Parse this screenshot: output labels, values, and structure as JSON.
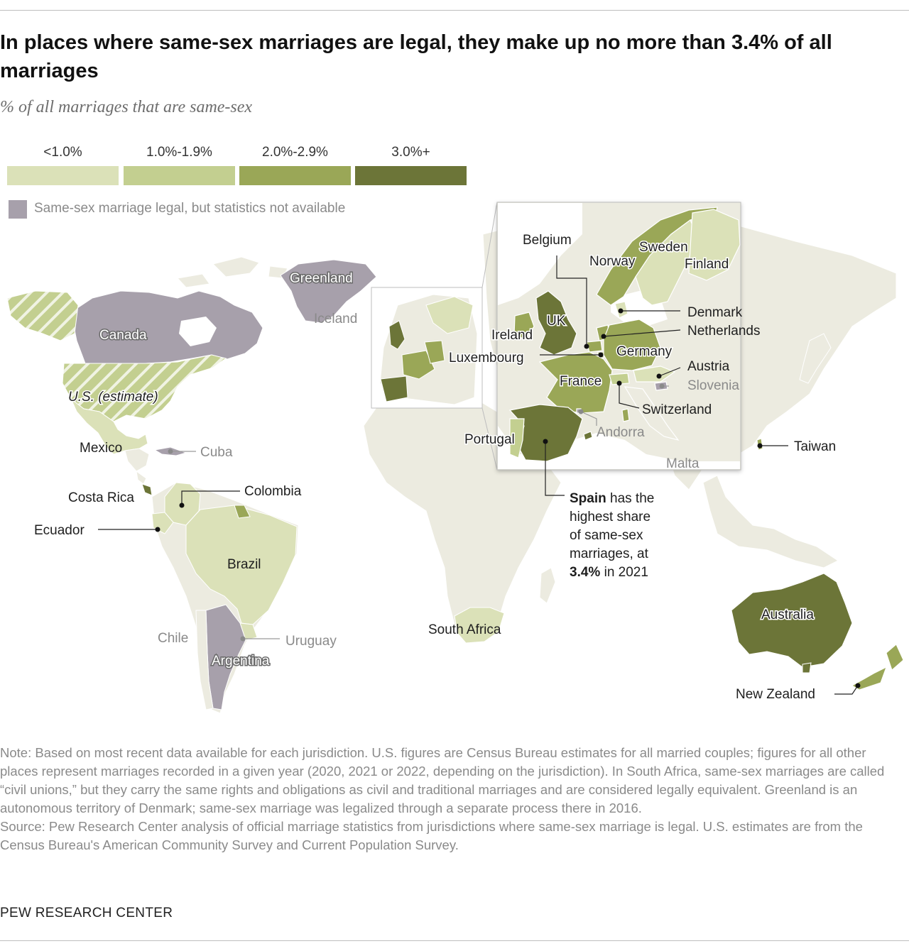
{
  "title": "In places where same-sex marriages are legal, they make up no more than 3.4% of all marriages",
  "subtitle": "% of all marriages that are same-sex",
  "colors": {
    "lt1": "#dbe1b8",
    "c1_19": "#c3cf90",
    "c2_29": "#9aa757",
    "c3plus": "#6c7538",
    "na": "#a7a0ab",
    "land": "#ecebe0",
    "border": "#ffffff"
  },
  "legend": {
    "bins": [
      {
        "label": "<1.0%",
        "color": "#dbe1b8"
      },
      {
        "label": "1.0%-1.9%",
        "color": "#c3cf90"
      },
      {
        "label": "2.0%-2.9%",
        "color": "#9aa757"
      },
      {
        "label": "3.0%+",
        "color": "#6c7538"
      }
    ],
    "na_label": "Same-sex marriage legal, but statistics not available"
  },
  "labels": {
    "greenland": "Greenland",
    "canada": "Canada",
    "iceland": "Iceland",
    "us": "U.S. (estimate)",
    "mexico": "Mexico",
    "cuba": "Cuba",
    "costa_rica": "Costa Rica",
    "colombia": "Colombia",
    "ecuador": "Ecuador",
    "brazil": "Brazil",
    "chile": "Chile",
    "argentina": "Argentina",
    "uruguay": "Uruguay",
    "south_africa": "South Africa",
    "taiwan": "Taiwan",
    "australia": "Australia",
    "new_zealand": "New Zealand",
    "belgium": "Belgium",
    "norway": "Norway",
    "sweden": "Sweden",
    "finland": "Finland",
    "denmark": "Denmark",
    "netherlands": "Netherlands",
    "uk": "UK",
    "ireland": "Ireland",
    "germany": "Germany",
    "luxembourg": "Luxembourg",
    "austria": "Austria",
    "france": "France",
    "slovenia": "Slovenia",
    "switzerland": "Switzerland",
    "andorra": "Andorra",
    "portugal": "Portugal",
    "malta": "Malta"
  },
  "callout": {
    "country": "Spain",
    "line1": " has the",
    "line2": "highest share",
    "line3": "of same-sex",
    "line4": "marriages, at",
    "value": "3.4%",
    "line5": " in 2021"
  },
  "note": "Note: Based on most recent data available for each jurisdiction. U.S. figures are Census Bureau estimates for all married couples; figures for all other places represent marriages recorded in a given year (2020, 2021 or 2022, depending on the jurisdiction). In South Africa, same-sex marriages are called “civil unions,” but they carry the same rights and obligations as civil and traditional marriages and are considered legally equivalent. Greenland is an autonomous territory of Denmark; same-sex marriage was legalized through a separate process there in 2016.",
  "source": "Source: Pew Research Center analysis of official marriage statistics from jurisdictions where same-sex marriage is legal. U.S. estimates are from the Census Bureau's American Community Survey and Current Population Survey.",
  "brand": "PEW RESEARCH CENTER"
}
